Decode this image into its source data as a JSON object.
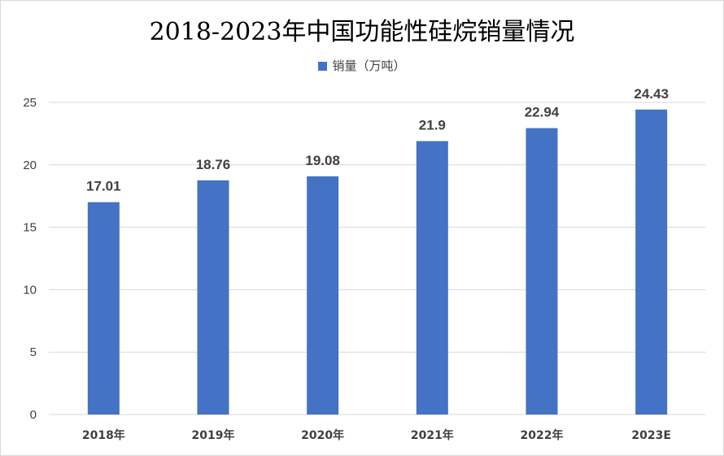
{
  "chart_data": {
    "type": "bar",
    "title": "2018-2023年中国功能性硅烷销量情况",
    "categories": [
      "2018年",
      "2019年",
      "2020年",
      "2021年",
      "2022年",
      "2023E"
    ],
    "series": [
      {
        "name": "销量（万吨）",
        "values": [
          17.01,
          18.76,
          19.08,
          21.9,
          22.94,
          24.43
        ]
      }
    ],
    "data_labels": [
      "17.01",
      "18.76",
      "19.08",
      "21.9",
      "22.94",
      "24.43"
    ],
    "y_ticks": [
      0,
      5,
      10,
      15,
      20,
      25
    ],
    "ylim": [
      0,
      25
    ],
    "xlabel": "",
    "ylabel": "",
    "grid": true,
    "legend_position": "top",
    "colors": {
      "bar": "#4472c4",
      "grid": "#d9d9d9",
      "text": "#404040"
    }
  }
}
